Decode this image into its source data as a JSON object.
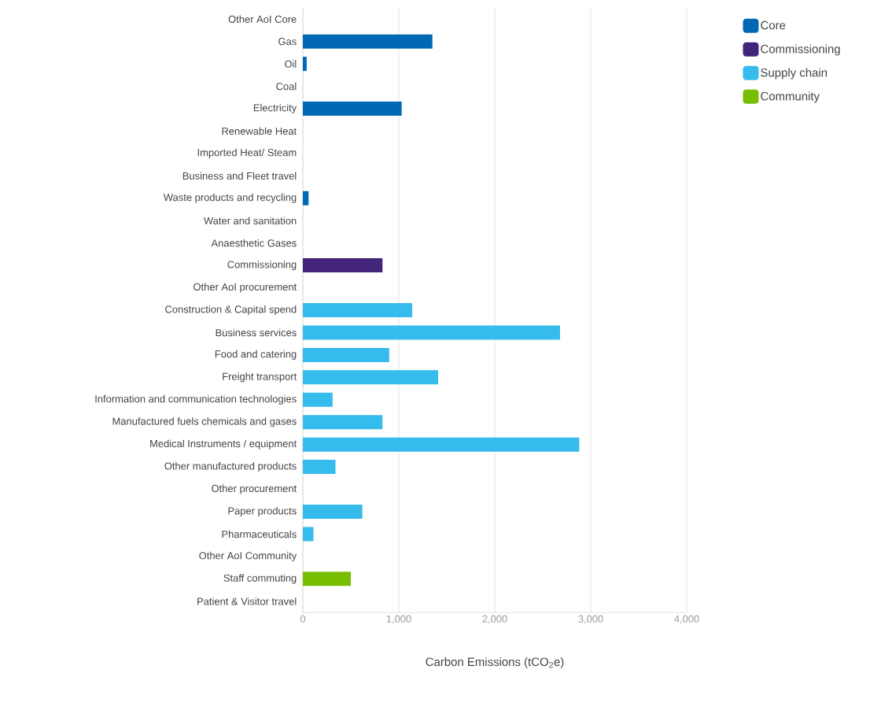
{
  "chart_data": {
    "type": "bar",
    "orientation": "horizontal",
    "xlabel": "Carbon Emissions (tCO$_{2}$e)",
    "categories": [
      "Other AoI Core",
      "Gas",
      "Oil",
      "Coal",
      "Electricity",
      "Renewable Heat",
      "Imported Heat/ Steam",
      "Business and Fleet travel",
      "Waste products and recycling",
      "Water and sanitation",
      "Anaesthetic Gases",
      "Commissioning",
      "Other AoI procurement",
      "Construction & Capital spend",
      "Business services",
      "Food and catering",
      "Freight transport",
      "Information and communication technologies",
      "Manufactured fuels chemicals and gases",
      "Medical Instruments / equipment",
      "Other manufactured products",
      "Other procurement",
      "Paper products",
      "Pharmaceuticals",
      "Other AoI Community",
      "Staff commuting",
      "Patient & Visitor travel"
    ],
    "series": [
      {
        "name": "Core",
        "color": "#0068b4",
        "values": [
          null,
          1350,
          40,
          null,
          1030,
          null,
          null,
          null,
          60,
          null,
          null,
          null,
          null,
          null,
          null,
          null,
          null,
          null,
          null,
          null,
          null,
          null,
          null,
          null,
          null,
          null,
          null
        ]
      },
      {
        "name": "Commissioning",
        "color": "#42247b",
        "values": [
          null,
          null,
          null,
          null,
          null,
          null,
          null,
          null,
          null,
          null,
          null,
          830,
          null,
          null,
          null,
          null,
          null,
          null,
          null,
          null,
          null,
          null,
          null,
          null,
          null,
          null,
          null
        ]
      },
      {
        "name": "Supply chain",
        "color": "#36bbed",
        "values": [
          null,
          null,
          null,
          null,
          null,
          null,
          null,
          null,
          null,
          null,
          null,
          null,
          null,
          1140,
          2680,
          900,
          1410,
          310,
          830,
          2880,
          340,
          null,
          620,
          110,
          null,
          null,
          null
        ]
      },
      {
        "name": "Community",
        "color": "#78be00",
        "values": [
          null,
          null,
          null,
          null,
          null,
          null,
          null,
          null,
          null,
          null,
          null,
          null,
          null,
          null,
          null,
          null,
          null,
          null,
          null,
          null,
          null,
          null,
          null,
          null,
          null,
          500,
          null
        ]
      }
    ],
    "xlim": [
      0,
      4000
    ],
    "xticks": [
      {
        "value": 0,
        "label": "0"
      },
      {
        "value": 1000,
        "label": "1,000"
      },
      {
        "value": 2000,
        "label": "2,000"
      },
      {
        "value": 3000,
        "label": "3,000"
      },
      {
        "value": 4000,
        "label": "4,000"
      }
    ],
    "grid": "x",
    "legend": "top right"
  }
}
